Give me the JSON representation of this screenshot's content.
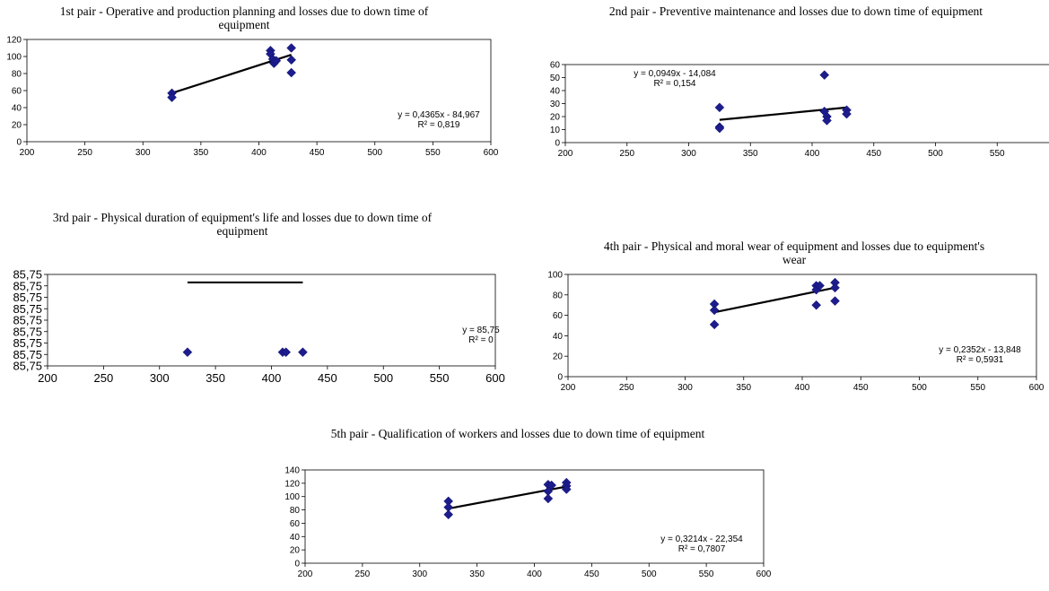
{
  "chart_data": [
    {
      "id": "c1",
      "type": "scatter",
      "title_lines": [
        "1st pair - Operative and production planning and losses due to down time of",
        "equipment"
      ],
      "xlim": [
        200,
        600
      ],
      "xticks": [
        200,
        250,
        300,
        350,
        400,
        450,
        500,
        550,
        600
      ],
      "ylim": [
        0,
        120
      ],
      "yticks": [
        0,
        20,
        40,
        60,
        80,
        100,
        120
      ],
      "ytick_labels": [
        "0",
        "20",
        "40",
        "60",
        "80",
        "100",
        "120"
      ],
      "points": [
        [
          325,
          57
        ],
        [
          325,
          52
        ],
        [
          410,
          107
        ],
        [
          410,
          103
        ],
        [
          412,
          97
        ],
        [
          413,
          92
        ],
        [
          415,
          95
        ],
        [
          428,
          110
        ],
        [
          428,
          96
        ],
        [
          428,
          81
        ]
      ],
      "trendline": {
        "x": [
          325,
          428
        ],
        "y": [
          57,
          102
        ]
      },
      "equation": "y = 0,4365x - 84,967",
      "r2": "R² = 0,819",
      "legend": "none",
      "grid": false
    },
    {
      "id": "c2",
      "type": "scatter",
      "title_lines": [
        "2nd pair - Preventive maintenance and losses due to down time of equipment"
      ],
      "xlim": [
        200,
        600
      ],
      "xticks": [
        200,
        250,
        300,
        350,
        400,
        450,
        500,
        550,
        600
      ],
      "ylim": [
        0,
        60
      ],
      "yticks": [
        0,
        10,
        20,
        30,
        40,
        50,
        60
      ],
      "ytick_labels": [
        "0",
        "10",
        "20",
        "30",
        "40",
        "50",
        "60"
      ],
      "points": [
        [
          325,
          27
        ],
        [
          325,
          12
        ],
        [
          325,
          11
        ],
        [
          410,
          52
        ],
        [
          410,
          24
        ],
        [
          412,
          20
        ],
        [
          412,
          17
        ],
        [
          428,
          25
        ],
        [
          428,
          22
        ]
      ],
      "trendline": {
        "x": [
          325,
          428
        ],
        "y": [
          17.5,
          27
        ]
      },
      "equation": "y = 0,0949x - 14,084",
      "r2": "R² = 0,154",
      "legend": "none",
      "grid": false
    },
    {
      "id": "c3",
      "type": "scatter",
      "title_lines": [
        "3rd pair - Physical duration of equipment's life and losses due to down time of",
        "equipment"
      ],
      "xlim": [
        200,
        600
      ],
      "xticks": [
        200,
        250,
        300,
        350,
        400,
        450,
        500,
        550,
        600
      ],
      "ylim": [
        0,
        8
      ],
      "yticks": [
        0,
        1,
        2,
        3,
        4,
        5,
        6,
        7,
        8
      ],
      "ytick_labels": [
        "85,75",
        "85,75",
        "85,75",
        "85,75",
        "85,75",
        "85,75",
        "85,75",
        "85,75",
        "85,75"
      ],
      "points": [
        [
          325,
          1.2
        ],
        [
          410,
          1.2
        ],
        [
          413,
          1.2
        ],
        [
          428,
          1.2
        ]
      ],
      "trendline": {
        "x": [
          325,
          428
        ],
        "y": [
          7.3,
          7.3
        ]
      },
      "equation": "y = 85,75",
      "r2": "R² = 0",
      "legend": "none",
      "grid": false
    },
    {
      "id": "c4",
      "type": "scatter",
      "title_lines": [
        "4th pair - Physical and moral wear of equipment and losses due to equipment's",
        "wear"
      ],
      "xlim": [
        200,
        600
      ],
      "xticks": [
        200,
        250,
        300,
        350,
        400,
        450,
        500,
        550,
        600
      ],
      "ylim": [
        0,
        100
      ],
      "yticks": [
        0,
        20,
        40,
        60,
        80,
        100
      ],
      "ytick_labels": [
        "0",
        "20",
        "40",
        "60",
        "80",
        "100"
      ],
      "points": [
        [
          325,
          71
        ],
        [
          325,
          65
        ],
        [
          325,
          51
        ],
        [
          412,
          89
        ],
        [
          412,
          85
        ],
        [
          412,
          70
        ],
        [
          415,
          89
        ],
        [
          428,
          92
        ],
        [
          428,
          87
        ],
        [
          428,
          74
        ]
      ],
      "trendline": {
        "x": [
          325,
          428
        ],
        "y": [
          63,
          87
        ]
      },
      "equation": "y = 0,2352x - 13,848",
      "r2": "R² = 0,5931",
      "legend": "none",
      "grid": false
    },
    {
      "id": "c5",
      "type": "scatter",
      "title_lines": [
        "5th pair - Qualification of workers and losses due to down time of equipment"
      ],
      "xlim": [
        200,
        600
      ],
      "xticks": [
        200,
        250,
        300,
        350,
        400,
        450,
        500,
        550,
        600
      ],
      "ylim": [
        0,
        140
      ],
      "yticks": [
        0,
        20,
        40,
        60,
        80,
        100,
        120,
        140
      ],
      "ytick_labels": [
        "0",
        "20",
        "40",
        "60",
        "80",
        "100",
        "120",
        "140"
      ],
      "points": [
        [
          325,
          93
        ],
        [
          325,
          84
        ],
        [
          325,
          73
        ],
        [
          412,
          118
        ],
        [
          412,
          108
        ],
        [
          412,
          97
        ],
        [
          415,
          117
        ],
        [
          428,
          121
        ],
        [
          428,
          116
        ],
        [
          428,
          111
        ]
      ],
      "trendline": {
        "x": [
          325,
          428
        ],
        "y": [
          82,
          115
        ]
      },
      "equation": "y = 0,3214x - 22,354",
      "r2": "R² = 0,7807",
      "legend": "none",
      "grid": false
    }
  ]
}
